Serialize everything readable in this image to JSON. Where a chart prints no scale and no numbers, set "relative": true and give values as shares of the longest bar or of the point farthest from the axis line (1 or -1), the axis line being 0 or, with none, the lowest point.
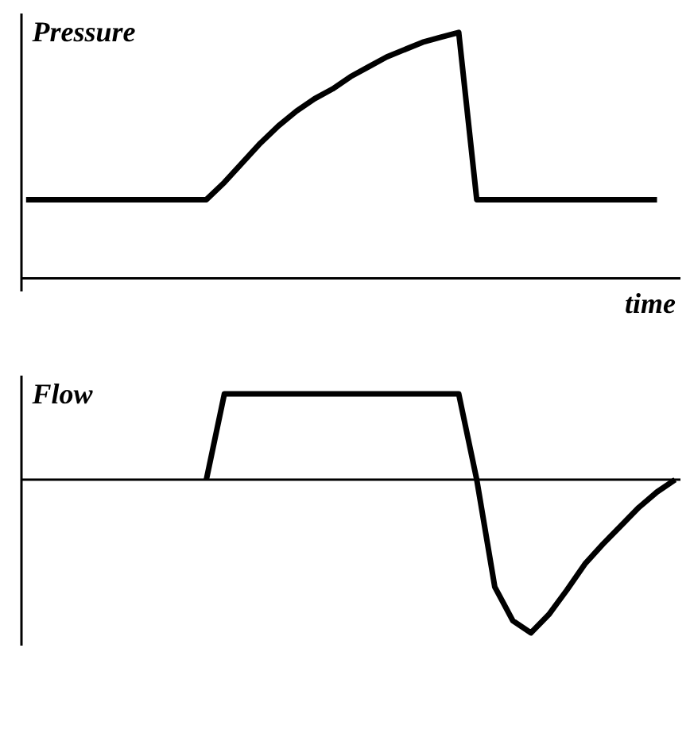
{
  "chart_data": [
    {
      "type": "line",
      "title": "Pressure",
      "xlabel": "time",
      "relative": true,
      "tick_labels": false,
      "categories": [
        null,
        null,
        null,
        null,
        null,
        null,
        null,
        null,
        null,
        null,
        null,
        null,
        null,
        null,
        null,
        null,
        null,
        null,
        null,
        null,
        null,
        null,
        null,
        null,
        null,
        null,
        null,
        null,
        null,
        null,
        null,
        null,
        null,
        null,
        null,
        null,
        null
      ],
      "series": [
        {
          "color": "#000000",
          "values": [
            0.32,
            0.32,
            0.32,
            0.32,
            0.32,
            0.32,
            0.32,
            0.32,
            0.32,
            0.32,
            0.32,
            0.39,
            0.47,
            0.55,
            0.62,
            0.68,
            0.73,
            0.77,
            0.82,
            0.86,
            0.9,
            0.93,
            0.96,
            0.98,
            1,
            0.32,
            0.32,
            0.32,
            0.32,
            0.32,
            0.32,
            0.32,
            0.32,
            0.32,
            0.32,
            0.32,
            null
          ]
        }
      ]
    },
    {
      "type": "line",
      "title": "Flow",
      "relative": true,
      "tick_labels": false,
      "categories": [
        null,
        null,
        null,
        null,
        null,
        null,
        null,
        null,
        null,
        null,
        null,
        null,
        null,
        null,
        null,
        null,
        null,
        null,
        null,
        null,
        null,
        null,
        null,
        null,
        null,
        null,
        null,
        null,
        null,
        null,
        null,
        null,
        null,
        null,
        null,
        null,
        null
      ],
      "series": [
        {
          "color": "#000000",
          "values": [
            null,
            null,
            null,
            null,
            null,
            null,
            null,
            null,
            null,
            null,
            0,
            0.56,
            0.56,
            0.56,
            0.56,
            0.56,
            0.56,
            0.56,
            0.56,
            0.56,
            0.56,
            0.56,
            0.56,
            0.56,
            0.56,
            0,
            -0.7,
            -0.92,
            -1,
            -0.88,
            -0.72,
            -0.55,
            -0.42,
            -0.3,
            -0.18,
            -0.08,
            0
          ]
        }
      ]
    }
  ]
}
